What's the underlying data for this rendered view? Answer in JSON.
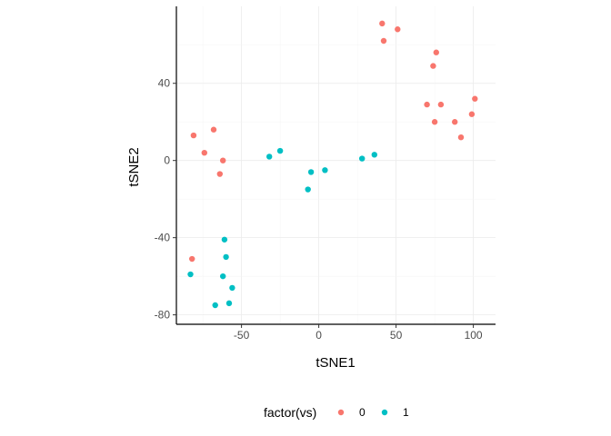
{
  "chart_data": {
    "type": "scatter",
    "title": "",
    "xlabel": "tSNE1",
    "ylabel": "tSNE2",
    "xlim": [
      -88,
      112
    ],
    "ylim": [
      -83,
      78
    ],
    "x_ticks": [
      -50,
      0,
      50,
      100
    ],
    "y_ticks": [
      -80,
      -40,
      0,
      40
    ],
    "x_tick_labels": [
      "-50",
      "0",
      "50",
      "100"
    ],
    "y_tick_labels": [
      "-80",
      "-40",
      "0",
      "40"
    ],
    "grid": true,
    "legend": {
      "title": "factor(vs)",
      "position": "bottom",
      "entries": [
        "0",
        "1"
      ]
    },
    "series": [
      {
        "name": "0",
        "color": "#F8766D",
        "points": [
          {
            "x": 41,
            "y": 71
          },
          {
            "x": 42,
            "y": 62
          },
          {
            "x": 51,
            "y": 68
          },
          {
            "x": 76,
            "y": 56
          },
          {
            "x": 74,
            "y": 49
          },
          {
            "x": 101,
            "y": 32
          },
          {
            "x": 70,
            "y": 29
          },
          {
            "x": 79,
            "y": 29
          },
          {
            "x": 99,
            "y": 24
          },
          {
            "x": 75,
            "y": 20
          },
          {
            "x": 88,
            "y": 20
          },
          {
            "x": 92,
            "y": 12
          },
          {
            "x": -81,
            "y": 13
          },
          {
            "x": -68,
            "y": 16
          },
          {
            "x": -74,
            "y": 4
          },
          {
            "x": -62,
            "y": 0
          },
          {
            "x": -64,
            "y": -7
          },
          {
            "x": -82,
            "y": -51
          }
        ]
      },
      {
        "name": "1",
        "color": "#00BFC4",
        "points": [
          {
            "x": -25,
            "y": 5
          },
          {
            "x": -32,
            "y": 2
          },
          {
            "x": -5,
            "y": -6
          },
          {
            "x": 4,
            "y": -5
          },
          {
            "x": -7,
            "y": -15
          },
          {
            "x": 28,
            "y": 1
          },
          {
            "x": 36,
            "y": 3
          },
          {
            "x": -61,
            "y": -41
          },
          {
            "x": -60,
            "y": -50
          },
          {
            "x": -83,
            "y": -59
          },
          {
            "x": -62,
            "y": -60
          },
          {
            "x": -56,
            "y": -66
          },
          {
            "x": -58,
            "y": -74
          },
          {
            "x": -67,
            "y": -75
          }
        ]
      }
    ]
  }
}
